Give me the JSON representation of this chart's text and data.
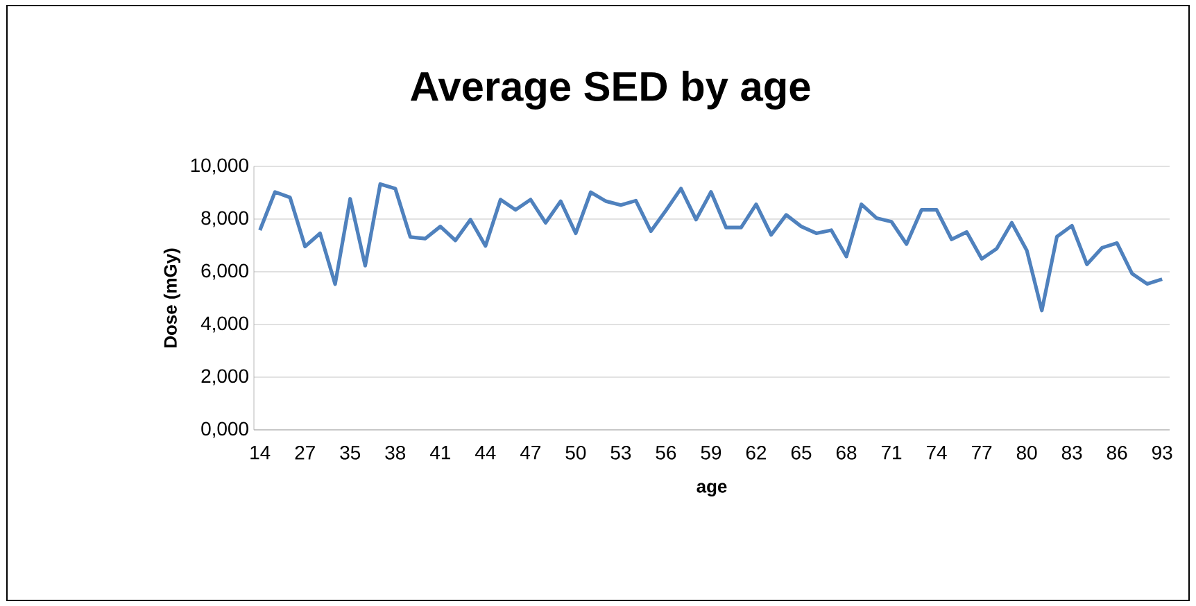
{
  "chart_data": {
    "type": "line",
    "title": "Average SED by age",
    "xlabel": "age",
    "ylabel": "Dose (mGy)",
    "categories": [
      "14",
      null,
      null,
      "27",
      null,
      null,
      "35",
      null,
      null,
      "38",
      null,
      null,
      "41",
      null,
      null,
      "44",
      null,
      null,
      "47",
      null,
      null,
      "50",
      null,
      null,
      "53",
      null,
      null,
      "56",
      null,
      null,
      "59",
      null,
      null,
      "62",
      null,
      null,
      "65",
      null,
      null,
      "68",
      null,
      null,
      "71",
      null,
      null,
      "74",
      null,
      null,
      "77",
      null,
      null,
      "80",
      null,
      null,
      "83",
      null,
      null,
      "86",
      null,
      null,
      "93"
    ],
    "series": [
      {
        "color": "#4f81bd",
        "values": [
          7580,
          9030,
          8820,
          6960,
          7460,
          5530,
          8770,
          6230,
          9330,
          9160,
          7320,
          7260,
          7720,
          7190,
          7980,
          6980,
          8740,
          8350,
          8740,
          7860,
          8680,
          7460,
          9020,
          8680,
          8530,
          8700,
          7540,
          8330,
          9160,
          7980,
          9030,
          7680,
          7680,
          8560,
          7400,
          8160,
          7720,
          7460,
          7580,
          6580,
          8560,
          8040,
          7900,
          7050,
          8350,
          8350,
          7230,
          7510,
          6490,
          6880,
          7860,
          6810,
          4530,
          7330,
          7750,
          6280,
          6910,
          7090,
          5930,
          5540,
          5720
        ]
      }
    ],
    "ylim": [
      0,
      10000
    ],
    "yticks": [
      {
        "value": 0,
        "label": "0,000"
      },
      {
        "value": 2000,
        "label": "2,000"
      },
      {
        "value": 4000,
        "label": "4,000"
      },
      {
        "value": 6000,
        "label": "6,000"
      },
      {
        "value": 8000,
        "label": "8,000"
      },
      {
        "value": 10000,
        "label": "10,000"
      }
    ],
    "grid": "y",
    "marker": "none",
    "line_style": "solid"
  }
}
